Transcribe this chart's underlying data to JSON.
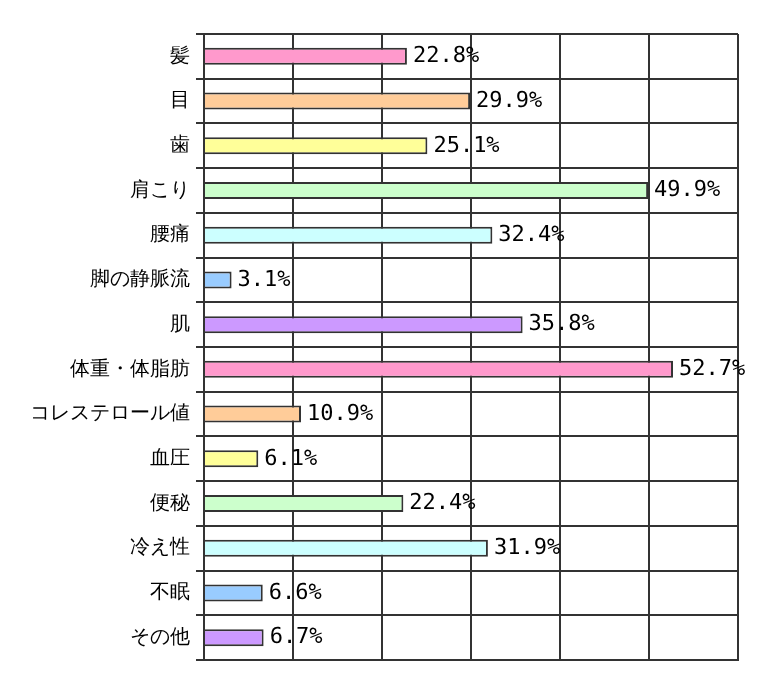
{
  "chart_data": {
    "type": "bar",
    "orientation": "horizontal",
    "categories": [
      "髪",
      "目",
      "歯",
      "肩こり",
      "腰痛",
      "脚の静脈流",
      "肌",
      "体重・体脂肪",
      "コレステロール値",
      "血圧",
      "便秘",
      "冷え性",
      "不眠",
      "その他"
    ],
    "values": [
      22.8,
      29.9,
      25.1,
      49.9,
      32.4,
      3.1,
      35.8,
      52.7,
      10.9,
      6.1,
      22.4,
      31.9,
      6.6,
      6.7
    ],
    "value_labels": [
      "22.8%",
      "29.9%",
      "25.1%",
      "49.9%",
      "32.4%",
      "3.1%",
      "35.8%",
      "52.7%",
      "10.9%",
      "6.1%",
      "22.4%",
      "31.9%",
      "6.6%",
      "6.7%"
    ],
    "colors": [
      "#ff99cc",
      "#ffcc99",
      "#ffff99",
      "#ccffcc",
      "#ccffff",
      "#99ccff",
      "#cc99ff",
      "#ff99cc",
      "#ffcc99",
      "#ffff99",
      "#ccffcc",
      "#ccffff",
      "#99ccff",
      "#cc99ff"
    ],
    "xlim": [
      0,
      60
    ],
    "xticks": [
      {
        "value": 0,
        "label": null
      },
      {
        "value": 10,
        "label": null
      },
      {
        "value": 20,
        "label": null
      },
      {
        "value": 30,
        "label": null
      },
      {
        "value": 40,
        "label": null
      },
      {
        "value": 50,
        "label": null
      },
      {
        "value": 60,
        "label": null
      }
    ],
    "tick_labels": "y",
    "grid": true,
    "legend": false
  }
}
